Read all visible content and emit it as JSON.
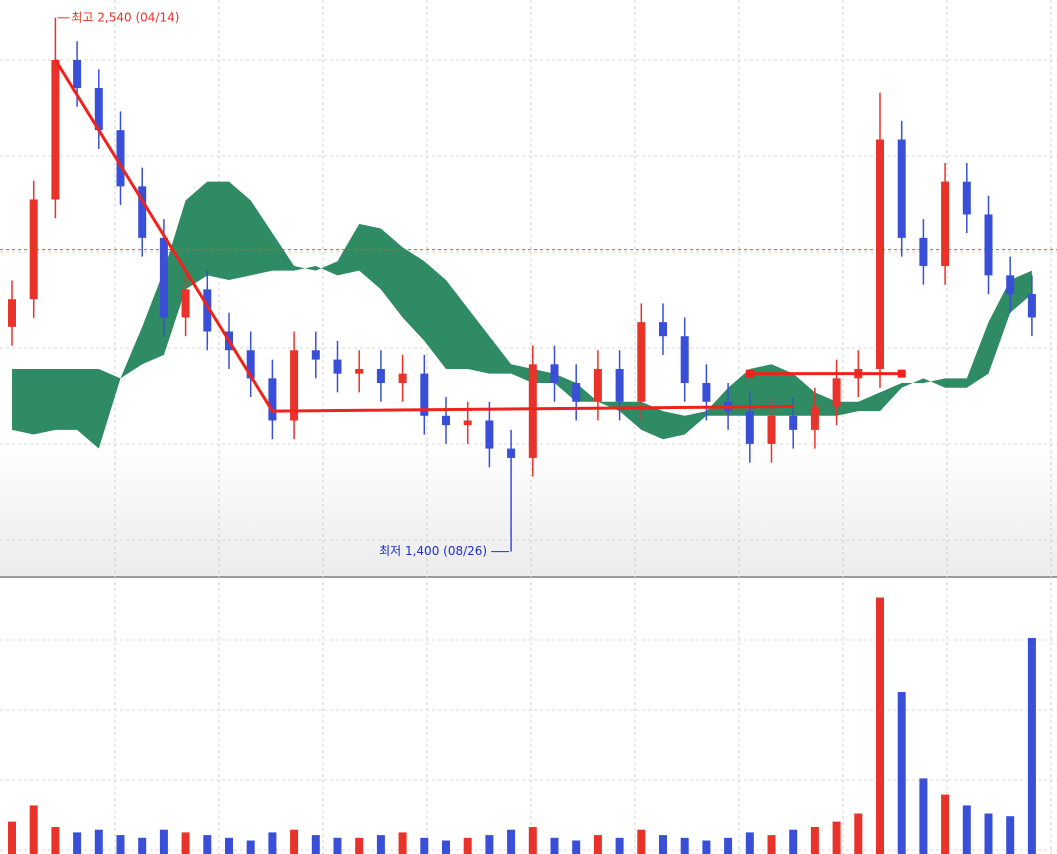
{
  "chart_data": {
    "type": "candlestick",
    "open": [
      1880,
      1939,
      2152,
      2450,
      2390,
      2300,
      2180,
      2070,
      1900,
      1960,
      1870,
      1830,
      1770,
      1680,
      1830,
      1810,
      1780,
      1790,
      1760,
      1780,
      1690,
      1670,
      1680,
      1620,
      1600,
      1800,
      1760,
      1720,
      1790,
      1720,
      1890,
      1860,
      1760,
      1720,
      1700,
      1630,
      1690,
      1660,
      1710,
      1770,
      1790,
      2280,
      2070,
      2010,
      2190,
      2120,
      1990,
      1950
    ],
    "high": [
      1979,
      2192,
      2540,
      2490,
      2430,
      2340,
      2220,
      2110,
      2000,
      2000,
      1910,
      1870,
      1810,
      1870,
      1870,
      1850,
      1830,
      1830,
      1820,
      1820,
      1730,
      1720,
      1720,
      1660,
      1840,
      1840,
      1800,
      1830,
      1830,
      1930,
      1930,
      1900,
      1800,
      1760,
      1740,
      1730,
      1730,
      1750,
      1810,
      1830,
      2380,
      2320,
      2110,
      2230,
      2230,
      2160,
      2030,
      1990
    ],
    "low": [
      1840,
      1899,
      2112,
      2350,
      2260,
      2140,
      2030,
      1860,
      1860,
      1830,
      1790,
      1730,
      1640,
      1640,
      1770,
      1740,
      1740,
      1720,
      1720,
      1650,
      1630,
      1630,
      1580,
      1400,
      1560,
      1720,
      1680,
      1680,
      1680,
      1680,
      1820,
      1720,
      1680,
      1660,
      1590,
      1590,
      1620,
      1620,
      1670,
      1730,
      1750,
      2030,
      1970,
      1970,
      2080,
      1950,
      1910,
      1860
    ],
    "close": [
      1939,
      2152,
      2450,
      2390,
      2300,
      2180,
      2070,
      1900,
      1960,
      1870,
      1830,
      1770,
      1680,
      1830,
      1810,
      1780,
      1790,
      1760,
      1780,
      1690,
      1670,
      1680,
      1620,
      1600,
      1800,
      1760,
      1720,
      1790,
      1720,
      1890,
      1860,
      1760,
      1720,
      1700,
      1630,
      1690,
      1660,
      1710,
      1770,
      1790,
      2280,
      2070,
      2010,
      2190,
      2120,
      1990,
      1950,
      1900
    ],
    "up_color": "#e8322a",
    "down_color": "#3a4fd8",
    "ylim": [
      1350,
      2578
    ],
    "reference_line": 2045,
    "cloud": {
      "color": "#2e8b64",
      "span_a": [
        1790,
        1790,
        1790,
        1790,
        1790,
        1770,
        1880,
        2000,
        2150,
        2190,
        2190,
        2150,
        2080,
        2010,
        2000,
        2020,
        2100,
        2090,
        2050,
        2020,
        1980,
        1920,
        1860,
        1800,
        1790,
        1780,
        1760,
        1720,
        1720,
        1720,
        1700,
        1690,
        1700,
        1750,
        1790,
        1800,
        1780,
        1740,
        1720,
        1720,
        1740,
        1760,
        1760,
        1770,
        1770,
        1890,
        1980,
        2000
      ],
      "span_b": [
        1660,
        1650,
        1660,
        1660,
        1620,
        1770,
        1800,
        1820,
        1960,
        1990,
        1980,
        1990,
        2000,
        2000,
        2010,
        1990,
        2000,
        1960,
        1900,
        1850,
        1790,
        1790,
        1780,
        1780,
        1760,
        1760,
        1720,
        1720,
        1700,
        1660,
        1640,
        1650,
        1690,
        1690,
        1690,
        1690,
        1690,
        1690,
        1690,
        1700,
        1700,
        1750,
        1770,
        1750,
        1750,
        1780,
        1910,
        1950
      ]
    },
    "volume": {
      "ylim": [
        0,
        100
      ],
      "values": [
        12,
        18,
        10,
        8,
        9,
        7,
        6,
        9,
        8,
        7,
        6,
        5,
        8,
        9,
        7,
        6,
        6,
        7,
        8,
        6,
        5,
        6,
        7,
        9,
        10,
        6,
        5,
        7,
        6,
        9,
        7,
        6,
        5,
        6,
        8,
        7,
        9,
        10,
        12,
        15,
        95,
        60,
        28,
        22,
        18,
        15,
        14,
        80
      ]
    },
    "annotations": [
      {
        "text": "최고 2,540 (04/14)",
        "index": 2,
        "value": 2540
      },
      {
        "text": "최저 1,400 (08/26)",
        "index": 23,
        "value": 1400
      }
    ],
    "trend_color": "#f0221c",
    "trend_lines": [
      {
        "points": [
          [
            2,
            2450
          ],
          [
            12,
            1700
          ],
          [
            36,
            1710
          ]
        ]
      },
      {
        "points": [
          [
            34,
            1780
          ],
          [
            41,
            1780
          ]
        ]
      }
    ]
  }
}
